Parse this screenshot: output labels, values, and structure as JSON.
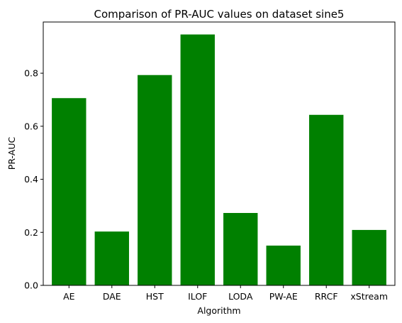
{
  "chart_data": {
    "type": "bar",
    "title": "Comparison of PR-AUC values on dataset sine5",
    "xlabel": "Algorithm",
    "ylabel": "PR-AUC",
    "categories": [
      "AE",
      "DAE",
      "HST",
      "ILOF",
      "LODA",
      "PW-AE",
      "RRCF",
      "xStream"
    ],
    "values": [
      0.706,
      0.203,
      0.793,
      0.946,
      0.273,
      0.15,
      0.643,
      0.209
    ],
    "ylim": [
      0,
      0.993
    ],
    "yticks": [
      0.0,
      0.2,
      0.4,
      0.6,
      0.8
    ],
    "ytick_labels": [
      "0.0",
      "0.2",
      "0.4",
      "0.6",
      "0.8"
    ],
    "bar_color": "#008000",
    "grid": false,
    "legend": "none"
  }
}
